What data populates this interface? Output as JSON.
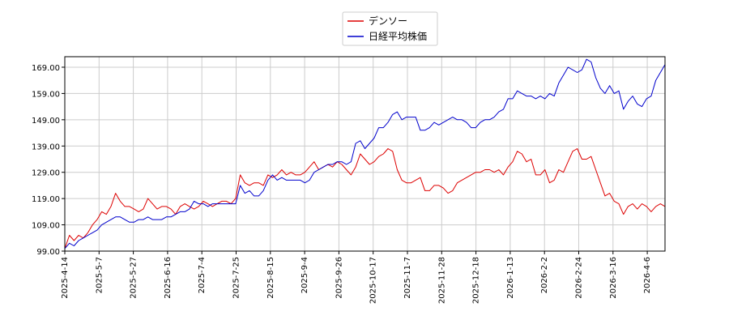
{
  "chart_data": {
    "type": "line",
    "title": "",
    "xlabel": "",
    "ylabel": "",
    "ylim": [
      99.0,
      173.0
    ],
    "y_ticks": [
      "99.00",
      "109.00",
      "119.00",
      "129.00",
      "139.00",
      "149.00",
      "159.00",
      "169.00"
    ],
    "x_ticks": [
      "2025-4-14",
      "2025-5-7",
      "2025-5-27",
      "2025-6-16",
      "2025-7-4",
      "2025-7-25",
      "2025-8-15",
      "2025-9-4",
      "2025-9-26",
      "2025-10-17",
      "2025-11-7",
      "2025-11-28",
      "2025-12-18",
      "2026-1-13",
      "2026-2-2",
      "2026-2-24",
      "2026-3-16",
      "2026-4-6"
    ],
    "grid": true,
    "legend_position": "top-center",
    "series": [
      {
        "name": "デンソー",
        "color": "#dd0000",
        "points": [
          [
            0,
            100
          ],
          [
            1,
            105
          ],
          [
            2,
            103
          ],
          [
            3,
            105
          ],
          [
            4,
            104
          ],
          [
            5,
            106
          ],
          [
            6,
            109
          ],
          [
            7,
            111
          ],
          [
            8,
            114
          ],
          [
            9,
            113
          ],
          [
            10,
            116
          ],
          [
            11,
            121
          ],
          [
            12,
            118
          ],
          [
            13,
            116
          ],
          [
            14,
            116
          ],
          [
            15,
            115
          ],
          [
            16,
            114
          ],
          [
            17,
            115
          ],
          [
            18,
            119
          ],
          [
            19,
            117
          ],
          [
            20,
            115
          ],
          [
            21,
            116
          ],
          [
            22,
            116
          ],
          [
            23,
            115
          ],
          [
            24,
            113
          ],
          [
            25,
            116
          ],
          [
            26,
            117
          ],
          [
            27,
            116
          ],
          [
            28,
            115
          ],
          [
            29,
            116
          ],
          [
            30,
            118
          ],
          [
            31,
            117
          ],
          [
            32,
            116
          ],
          [
            33,
            117
          ],
          [
            34,
            118
          ],
          [
            35,
            118
          ],
          [
            36,
            117
          ],
          [
            37,
            119
          ],
          [
            38,
            128
          ],
          [
            39,
            125
          ],
          [
            40,
            124
          ],
          [
            41,
            125
          ],
          [
            42,
            125
          ],
          [
            43,
            124
          ],
          [
            44,
            128
          ],
          [
            45,
            127
          ],
          [
            46,
            128
          ],
          [
            47,
            130
          ],
          [
            48,
            128
          ],
          [
            49,
            129
          ],
          [
            50,
            128
          ],
          [
            51,
            128
          ],
          [
            52,
            129
          ],
          [
            53,
            131
          ],
          [
            54,
            133
          ],
          [
            55,
            130
          ],
          [
            56,
            131
          ],
          [
            57,
            132
          ],
          [
            58,
            131
          ],
          [
            59,
            133
          ],
          [
            60,
            132
          ],
          [
            61,
            130
          ],
          [
            62,
            128
          ],
          [
            63,
            131
          ],
          [
            64,
            136
          ],
          [
            65,
            134
          ],
          [
            66,
            132
          ],
          [
            67,
            133
          ],
          [
            68,
            135
          ],
          [
            69,
            136
          ],
          [
            70,
            138
          ],
          [
            71,
            137
          ],
          [
            72,
            130
          ],
          [
            73,
            126
          ],
          [
            74,
            125
          ],
          [
            75,
            125
          ],
          [
            76,
            126
          ],
          [
            77,
            127
          ],
          [
            78,
            122
          ],
          [
            79,
            122
          ],
          [
            80,
            124
          ],
          [
            81,
            124
          ],
          [
            82,
            123
          ],
          [
            83,
            121
          ],
          [
            84,
            122
          ],
          [
            85,
            125
          ],
          [
            86,
            126
          ],
          [
            87,
            127
          ],
          [
            88,
            128
          ],
          [
            89,
            129
          ],
          [
            90,
            129
          ],
          [
            91,
            130
          ],
          [
            92,
            130
          ],
          [
            93,
            129
          ],
          [
            94,
            130
          ],
          [
            95,
            128
          ],
          [
            96,
            131
          ],
          [
            97,
            133
          ],
          [
            98,
            137
          ],
          [
            99,
            136
          ],
          [
            100,
            133
          ],
          [
            101,
            134
          ],
          [
            102,
            128
          ],
          [
            103,
            128
          ],
          [
            104,
            130
          ],
          [
            105,
            125
          ],
          [
            106,
            126
          ],
          [
            107,
            130
          ],
          [
            108,
            129
          ],
          [
            109,
            133
          ],
          [
            110,
            137
          ],
          [
            111,
            138
          ],
          [
            112,
            134
          ],
          [
            113,
            134
          ],
          [
            114,
            135
          ],
          [
            115,
            130
          ],
          [
            116,
            125
          ],
          [
            117,
            120
          ],
          [
            118,
            121
          ],
          [
            119,
            118
          ],
          [
            120,
            117
          ],
          [
            121,
            113
          ],
          [
            122,
            116
          ],
          [
            123,
            117
          ],
          [
            124,
            115
          ],
          [
            125,
            117
          ],
          [
            126,
            116
          ],
          [
            127,
            114
          ],
          [
            128,
            116
          ],
          [
            129,
            117
          ],
          [
            130,
            116
          ]
        ]
      },
      {
        "name": "日経平均株価",
        "color": "#0000cc",
        "points": [
          [
            0,
            100
          ],
          [
            1,
            102
          ],
          [
            2,
            101
          ],
          [
            3,
            103
          ],
          [
            4,
            104
          ],
          [
            5,
            105
          ],
          [
            6,
            106
          ],
          [
            7,
            107
          ],
          [
            8,
            109
          ],
          [
            9,
            110
          ],
          [
            10,
            111
          ],
          [
            11,
            112
          ],
          [
            12,
            112
          ],
          [
            13,
            111
          ],
          [
            14,
            110
          ],
          [
            15,
            110
          ],
          [
            16,
            111
          ],
          [
            17,
            111
          ],
          [
            18,
            112
          ],
          [
            19,
            111
          ],
          [
            20,
            111
          ],
          [
            21,
            111
          ],
          [
            22,
            112
          ],
          [
            23,
            112
          ],
          [
            24,
            113
          ],
          [
            25,
            114
          ],
          [
            26,
            114
          ],
          [
            27,
            115
          ],
          [
            28,
            118
          ],
          [
            29,
            117
          ],
          [
            30,
            117
          ],
          [
            31,
            116
          ],
          [
            32,
            117
          ],
          [
            33,
            117
          ],
          [
            34,
            117
          ],
          [
            35,
            117
          ],
          [
            36,
            117
          ],
          [
            37,
            117
          ],
          [
            38,
            124
          ],
          [
            39,
            121
          ],
          [
            40,
            122
          ],
          [
            41,
            120
          ],
          [
            42,
            120
          ],
          [
            43,
            122
          ],
          [
            44,
            126
          ],
          [
            45,
            128
          ],
          [
            46,
            126
          ],
          [
            47,
            127
          ],
          [
            48,
            126
          ],
          [
            49,
            126
          ],
          [
            50,
            126
          ],
          [
            51,
            126
          ],
          [
            52,
            125
          ],
          [
            53,
            126
          ],
          [
            54,
            129
          ],
          [
            55,
            130
          ],
          [
            56,
            131
          ],
          [
            57,
            132
          ],
          [
            58,
            132
          ],
          [
            59,
            133
          ],
          [
            60,
            133
          ],
          [
            61,
            132
          ],
          [
            62,
            133
          ],
          [
            63,
            140
          ],
          [
            64,
            141
          ],
          [
            65,
            138
          ],
          [
            66,
            140
          ],
          [
            67,
            142
          ],
          [
            68,
            146
          ],
          [
            69,
            146
          ],
          [
            70,
            148
          ],
          [
            71,
            151
          ],
          [
            72,
            152
          ],
          [
            73,
            149
          ],
          [
            74,
            150
          ],
          [
            75,
            150
          ],
          [
            76,
            150
          ],
          [
            77,
            145
          ],
          [
            78,
            145
          ],
          [
            79,
            146
          ],
          [
            80,
            148
          ],
          [
            81,
            147
          ],
          [
            82,
            148
          ],
          [
            83,
            149
          ],
          [
            84,
            150
          ],
          [
            85,
            149
          ],
          [
            86,
            149
          ],
          [
            87,
            148
          ],
          [
            88,
            146
          ],
          [
            89,
            146
          ],
          [
            90,
            148
          ],
          [
            91,
            149
          ],
          [
            92,
            149
          ],
          [
            93,
            150
          ],
          [
            94,
            152
          ],
          [
            95,
            153
          ],
          [
            96,
            157
          ],
          [
            97,
            157
          ],
          [
            98,
            160
          ],
          [
            99,
            159
          ],
          [
            100,
            158
          ],
          [
            101,
            158
          ],
          [
            102,
            157
          ],
          [
            103,
            158
          ],
          [
            104,
            157
          ],
          [
            105,
            159
          ],
          [
            106,
            158
          ],
          [
            107,
            163
          ],
          [
            108,
            166
          ],
          [
            109,
            169
          ],
          [
            110,
            168
          ],
          [
            111,
            167
          ],
          [
            112,
            168
          ],
          [
            113,
            172
          ],
          [
            114,
            171
          ],
          [
            115,
            165
          ],
          [
            116,
            161
          ],
          [
            117,
            159
          ],
          [
            118,
            162
          ],
          [
            119,
            159
          ],
          [
            120,
            160
          ],
          [
            121,
            153
          ],
          [
            122,
            156
          ],
          [
            123,
            158
          ],
          [
            124,
            155
          ],
          [
            125,
            154
          ],
          [
            126,
            157
          ],
          [
            127,
            158
          ],
          [
            128,
            164
          ],
          [
            129,
            167
          ],
          [
            130,
            170
          ]
        ]
      }
    ]
  }
}
